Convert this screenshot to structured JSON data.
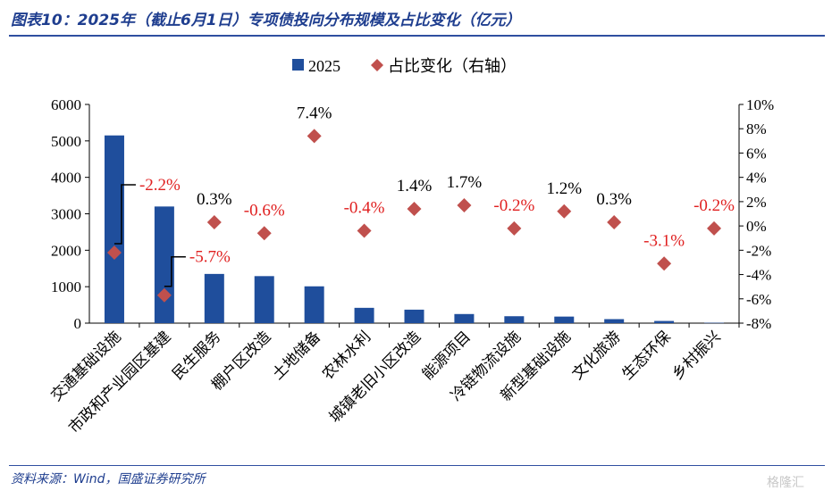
{
  "header": {
    "title": "图表10：2025年（截止6月1日）专项债投向分布规模及占比变化（亿元）"
  },
  "footer": {
    "source": "资料来源：Wind，国盛证券研究所",
    "watermark": "格隆汇"
  },
  "colors": {
    "bar": "#1f4e9c",
    "marker": "#c0504d",
    "negative_label": "#e02020",
    "positive_label": "#000000",
    "frame": "#2f4fa0"
  },
  "chart_data": {
    "type": "bar",
    "categories": [
      "交通基础设施",
      "市政和产业园区基建",
      "民生服务",
      "棚户区改造",
      "土地储备",
      "农林水利",
      "城镇老旧小区改造",
      "能源项目",
      "冷链物流设施",
      "新型基础设施",
      "文化旅游",
      "生态环保",
      "乡村振兴"
    ],
    "series": [
      {
        "name": "2025",
        "kind": "bar",
        "axis": "left",
        "values": [
          5150,
          3200,
          1350,
          1290,
          1010,
          420,
          370,
          250,
          190,
          180,
          110,
          60,
          10
        ]
      },
      {
        "name": "占比变化（右轴）",
        "kind": "marker",
        "axis": "right",
        "values": [
          -2.2,
          -5.7,
          0.3,
          -0.6,
          7.4,
          -0.4,
          1.4,
          1.7,
          -0.2,
          1.2,
          0.3,
          -3.1,
          -0.2
        ],
        "labels": [
          "-2.2%",
          "-5.7%",
          "0.3%",
          "-0.6%",
          "7.4%",
          "-0.4%",
          "1.4%",
          "1.7%",
          "-0.2%",
          "1.2%",
          "0.3%",
          "-3.1%",
          "-0.2%"
        ]
      }
    ],
    "y_left": {
      "ylim": [
        0,
        6000
      ],
      "ticks": [
        "0",
        "1000",
        "2000",
        "3000",
        "4000",
        "5000",
        "6000"
      ]
    },
    "y_right": {
      "ylim": [
        -8,
        10
      ],
      "ticks": [
        "-8%",
        "-6%",
        "-4%",
        "-2%",
        "0%",
        "2%",
        "4%",
        "6%",
        "8%",
        "10%"
      ]
    },
    "legend": {
      "placement": "top-center"
    },
    "grid": false
  }
}
